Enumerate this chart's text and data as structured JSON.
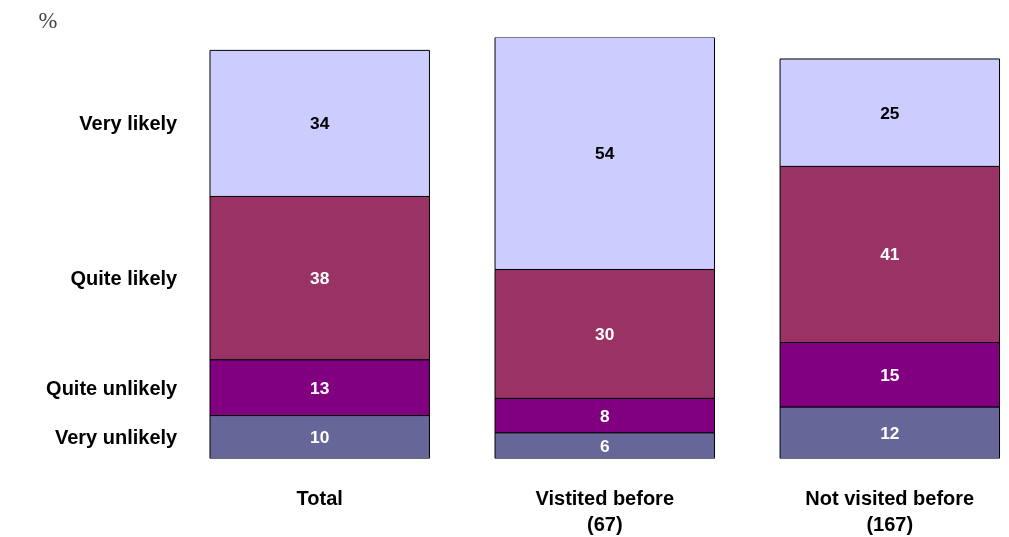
{
  "chart_data": {
    "type": "bar",
    "stacked": true,
    "annotations": [
      "%"
    ],
    "categories": [
      "Total",
      "Vistited before\n(67)",
      "Not visited before\n(167)"
    ],
    "series": [
      {
        "name": "Very unlikely",
        "color": "#666699",
        "values": [
          10,
          6,
          12
        ]
      },
      {
        "name": "Quite unlikely",
        "color": "#800080",
        "values": [
          13,
          8,
          15
        ]
      },
      {
        "name": "Quite likely",
        "color": "#993366",
        "values": [
          38,
          30,
          41
        ]
      },
      {
        "name": "Very likely",
        "color": "#ccccff",
        "values": [
          34,
          54,
          25
        ]
      }
    ],
    "data_labels": true,
    "legend": false,
    "grid": false
  }
}
